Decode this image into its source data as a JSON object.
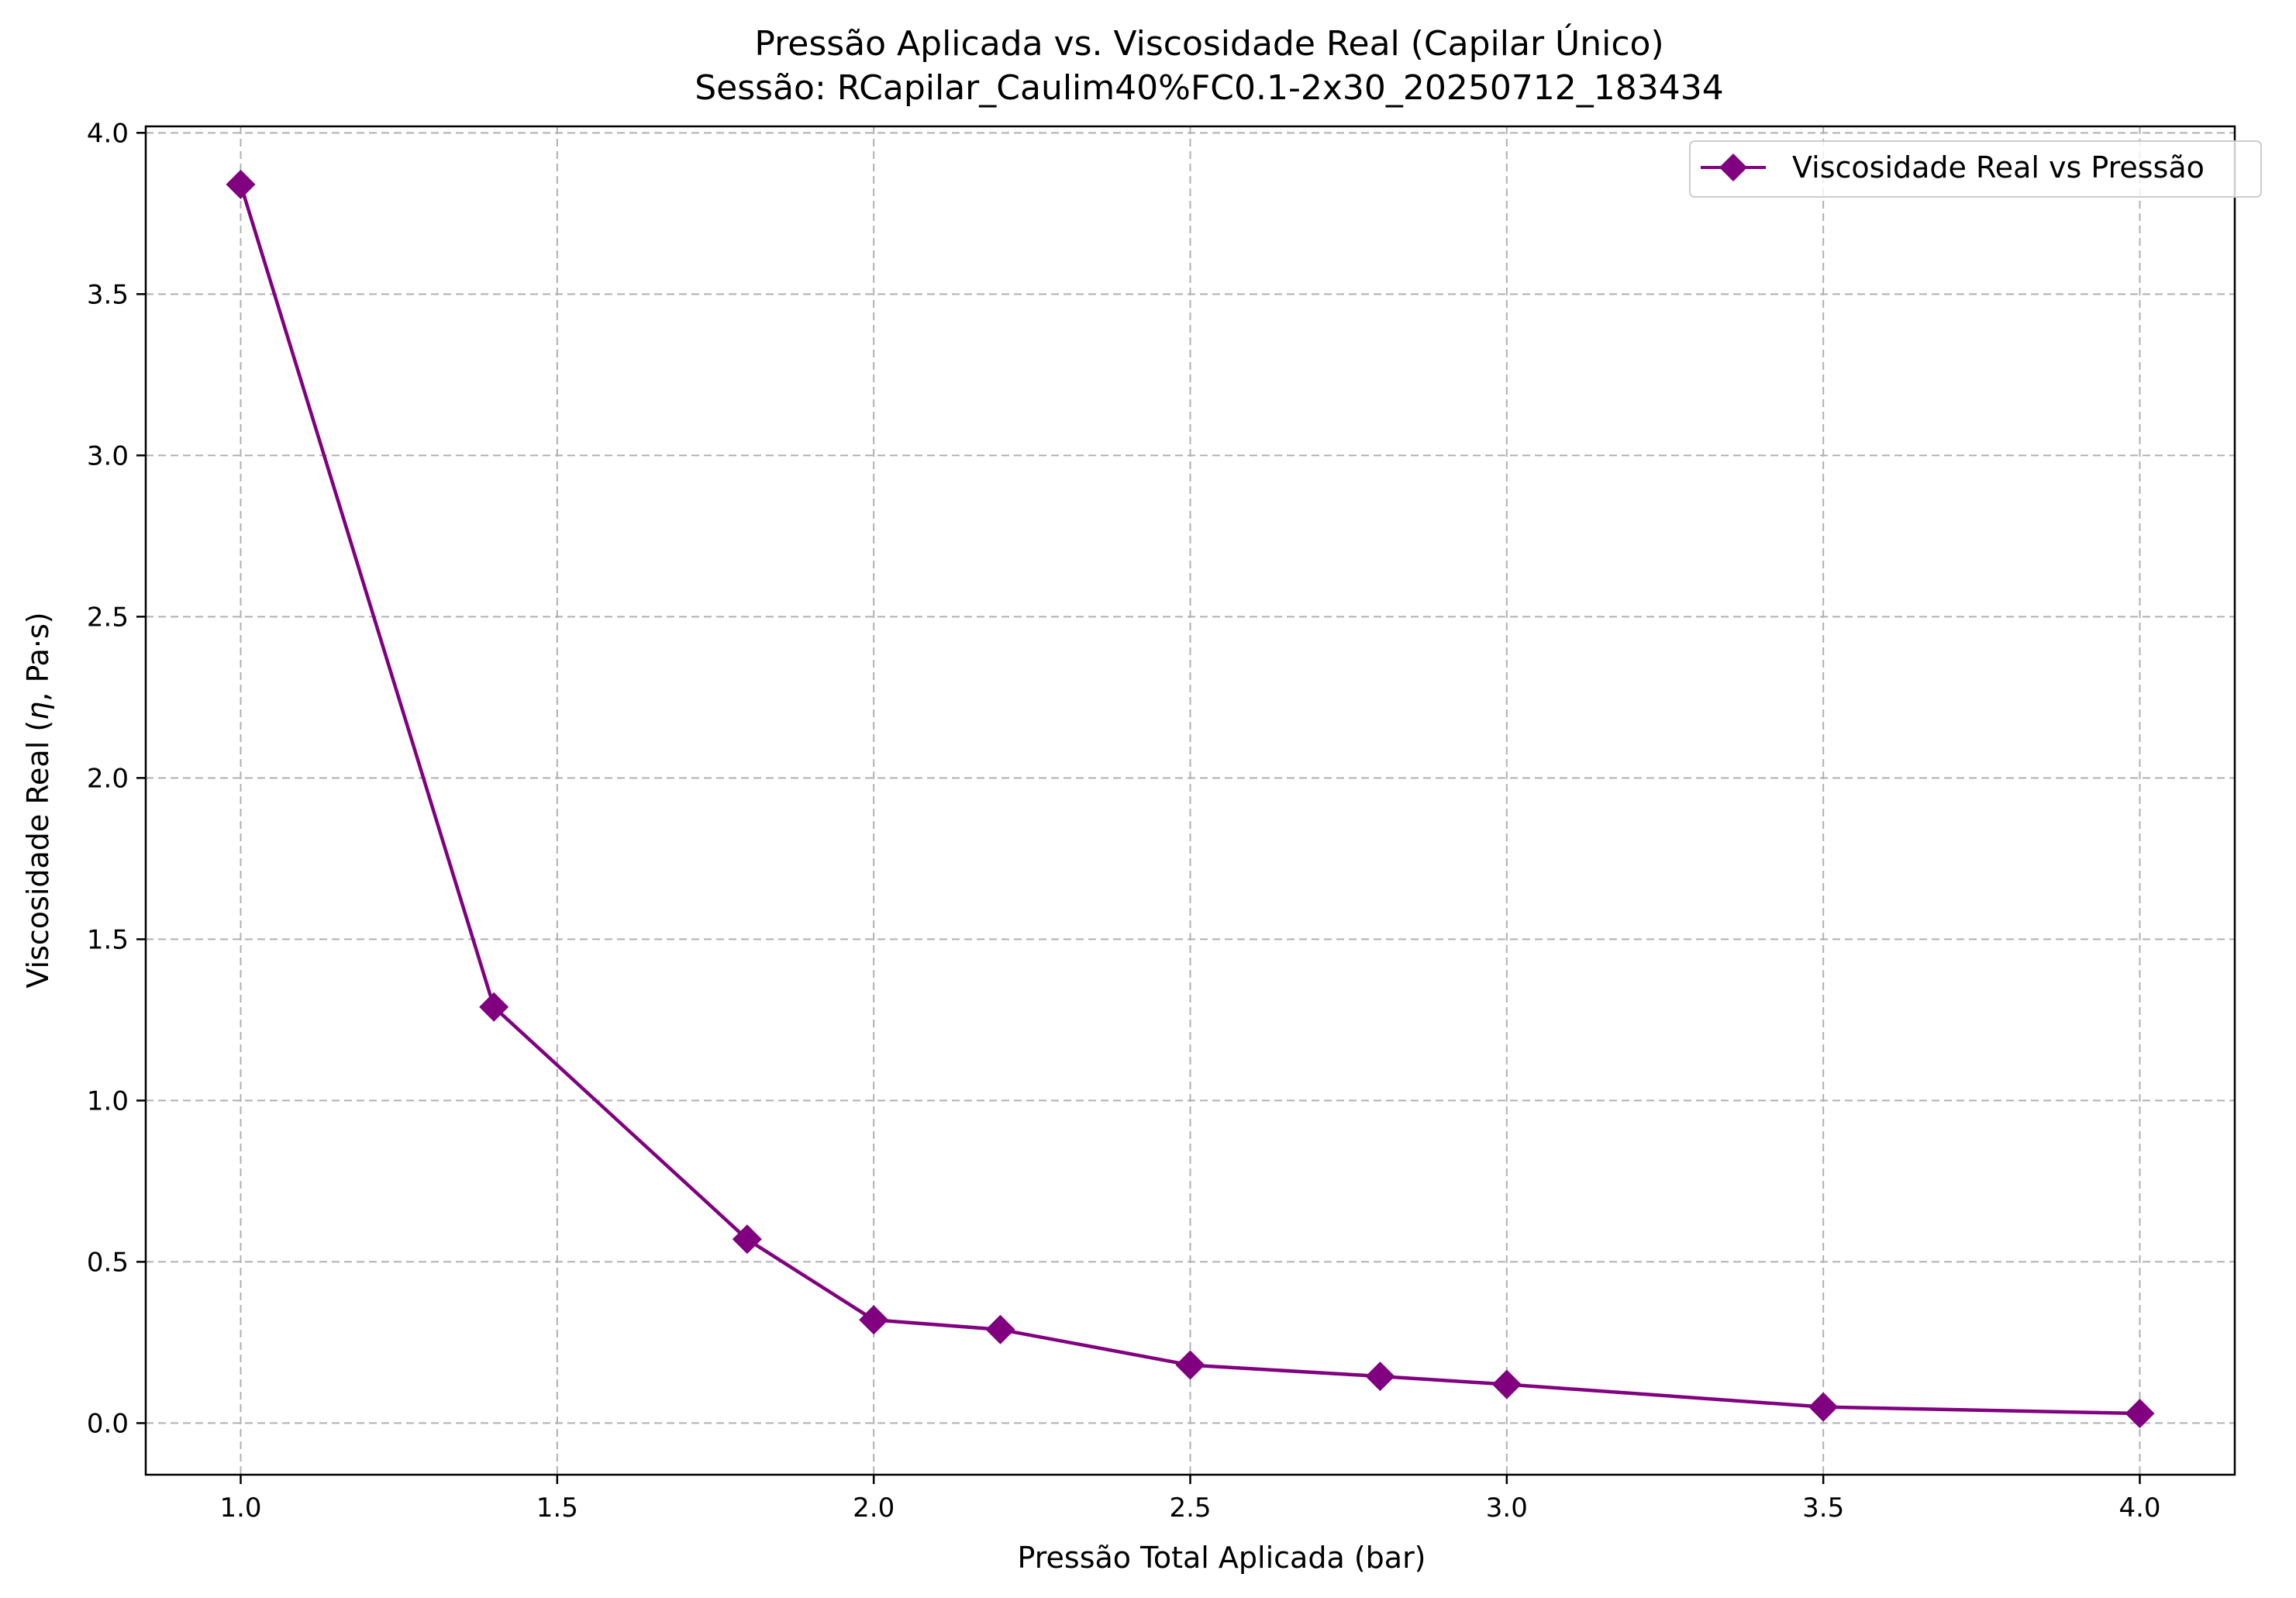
{
  "chart_data": {
    "type": "line",
    "title_line1": "Pressão Aplicada vs. Viscosidade Real (Capilar Único)",
    "title_line2": "Sessão: RCapilar_Caulim40%FC0.1-2x30_20250712_183434",
    "xlabel": "Pressão Total Aplicada (bar)",
    "ylabel_prefix": "Viscosidade Real (",
    "ylabel_symbol": "η",
    "ylabel_suffix": ", Pa·s)",
    "xlim": [
      0.85,
      4.15
    ],
    "ylim": [
      -0.16,
      4.02
    ],
    "xticks": [
      1.0,
      1.5,
      2.0,
      2.5,
      3.0,
      3.5,
      4.0
    ],
    "xtick_labels": [
      "1.0",
      "1.5",
      "2.0",
      "2.5",
      "3.0",
      "3.5",
      "4.0"
    ],
    "yticks": [
      0.0,
      0.5,
      1.0,
      1.5,
      2.0,
      2.5,
      3.0,
      3.5,
      4.0
    ],
    "ytick_labels": [
      "0.0",
      "0.5",
      "1.0",
      "1.5",
      "2.0",
      "2.5",
      "3.0",
      "3.5",
      "4.0"
    ],
    "grid": true,
    "legend_position": "top-right",
    "series": [
      {
        "name": "Viscosidade Real vs Pressão",
        "color": "#800080",
        "marker": "diamond",
        "x": [
          1.0,
          1.4,
          1.8,
          2.0,
          2.2,
          2.5,
          2.8,
          3.0,
          3.5,
          4.0
        ],
        "y": [
          3.84,
          1.29,
          0.57,
          0.32,
          0.29,
          0.18,
          0.145,
          0.12,
          0.05,
          0.03
        ]
      }
    ]
  }
}
